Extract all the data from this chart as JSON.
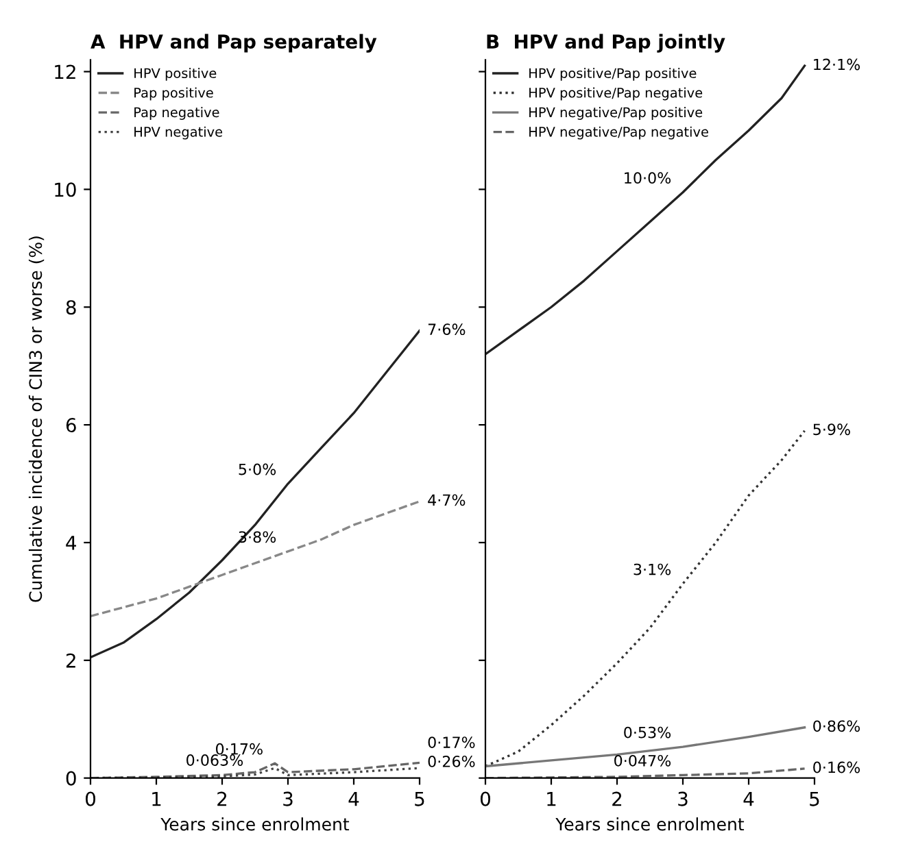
{
  "chart_data": [
    {
      "type": "line",
      "title": "A  HPV and Pap separately",
      "xlabel": "Years since enrolment",
      "ylabel": "Cumulative incidence of CIN3 or worse (%)",
      "xlim": [
        0,
        5
      ],
      "ylim": [
        0,
        12.2
      ],
      "xticks": [
        0,
        1,
        2,
        3,
        4,
        5
      ],
      "yticks": [
        0,
        2,
        4,
        6,
        8,
        10,
        12
      ],
      "legend": "top left",
      "grid": false,
      "series": [
        {
          "name": "HPV positive",
          "color": "#222222",
          "line_style": "solid",
          "x": [
            0,
            0.5,
            1,
            1.5,
            2,
            2.5,
            3,
            3.5,
            4,
            4.5,
            5
          ],
          "values": [
            2.05,
            2.3,
            2.7,
            3.15,
            3.7,
            4.3,
            5.0,
            5.6,
            6.2,
            6.9,
            7.6
          ]
        },
        {
          "name": "Pap positive",
          "color": "#888888",
          "line_style": "dashed",
          "x": [
            0,
            0.5,
            1,
            1.5,
            2,
            2.5,
            3,
            3.5,
            4,
            4.5,
            5
          ],
          "values": [
            2.75,
            2.9,
            3.05,
            3.25,
            3.45,
            3.65,
            3.85,
            4.05,
            4.3,
            4.5,
            4.7
          ]
        },
        {
          "name": "Pap negative",
          "color": "#666666",
          "line_style": "dashed",
          "x": [
            0,
            1,
            2,
            2.5,
            2.8,
            3,
            4,
            5
          ],
          "values": [
            0,
            0.02,
            0.05,
            0.1,
            0.25,
            0.1,
            0.15,
            0.26
          ]
        },
        {
          "name": "HPV negative",
          "color": "#444444",
          "line_style": "dotted",
          "x": [
            0,
            1,
            2,
            2.5,
            2.8,
            3,
            4,
            5
          ],
          "values": [
            0,
            0.01,
            0.03,
            0.06,
            0.17,
            0.05,
            0.1,
            0.17
          ]
        }
      ],
      "annotations": [
        {
          "text": "7·6%",
          "x": 5,
          "y": 7.6
        },
        {
          "text": "5·0%",
          "x": 3,
          "y": 5.0
        },
        {
          "text": "4·7%",
          "x": 5,
          "y": 4.7
        },
        {
          "text": "3·8%",
          "x": 3,
          "y": 3.85
        },
        {
          "text": "0·17%",
          "x": 2.8,
          "y": 0.25
        },
        {
          "text": "0·063%",
          "x": 2.5,
          "y": 0.06
        },
        {
          "text": "0·26%",
          "x": 5,
          "y": 0.26
        },
        {
          "text": "0·17%",
          "x": 5,
          "y": 0.17
        }
      ]
    },
    {
      "type": "line",
      "title": "B  HPV and Pap jointly",
      "xlabel": "Years since enrolment",
      "xlim": [
        0,
        5
      ],
      "ylim": [
        0,
        12.2
      ],
      "xticks": [
        0,
        1,
        2,
        3,
        4,
        5
      ],
      "yticks": [
        0,
        2,
        4,
        6,
        8,
        10,
        12
      ],
      "tick_labels": "x",
      "legend": "top left",
      "grid": false,
      "series": [
        {
          "name": "HPV positive/Pap positive",
          "color": "#222222",
          "line_style": "solid",
          "x": [
            0,
            0.5,
            1,
            1.5,
            2,
            2.5,
            3,
            3.5,
            4,
            4.5,
            4.85
          ],
          "values": [
            7.2,
            7.6,
            8.0,
            8.45,
            8.95,
            9.45,
            9.95,
            10.5,
            11.0,
            11.55,
            12.1
          ]
        },
        {
          "name": "HPV positive/Pap negative",
          "color": "#333333",
          "line_style": "dotted",
          "x": [
            0,
            0.5,
            1,
            1.5,
            2,
            2.5,
            3,
            3.5,
            4,
            4.5,
            4.85
          ],
          "values": [
            0.2,
            0.45,
            0.9,
            1.4,
            1.95,
            2.55,
            3.3,
            4.0,
            4.8,
            5.4,
            5.9
          ]
        },
        {
          "name": "HPV negative/Pap positive",
          "color": "#777777",
          "line_style": "solid",
          "x": [
            0,
            1,
            2,
            3,
            4,
            4.85
          ],
          "values": [
            0.2,
            0.3,
            0.4,
            0.53,
            0.7,
            0.86
          ]
        },
        {
          "name": "HPV negative/Pap negative",
          "color": "#666666",
          "line_style": "dashed",
          "x": [
            0,
            1,
            2,
            3,
            4,
            4.85
          ],
          "values": [
            0,
            0.01,
            0.02,
            0.05,
            0.08,
            0.16
          ]
        }
      ],
      "annotations": [
        {
          "text": "12·1%",
          "x": 4.85,
          "y": 12.1
        },
        {
          "text": "10·0%",
          "x": 3,
          "y": 9.95
        },
        {
          "text": "5·9%",
          "x": 4.85,
          "y": 5.9
        },
        {
          "text": "3·1%",
          "x": 3,
          "y": 3.3
        },
        {
          "text": "0·86%",
          "x": 4.85,
          "y": 0.86
        },
        {
          "text": "0·53%",
          "x": 3,
          "y": 0.53
        },
        {
          "text": "0·047%",
          "x": 3,
          "y": 0.05
        },
        {
          "text": "0·16%",
          "x": 4.85,
          "y": 0.16
        }
      ]
    }
  ]
}
